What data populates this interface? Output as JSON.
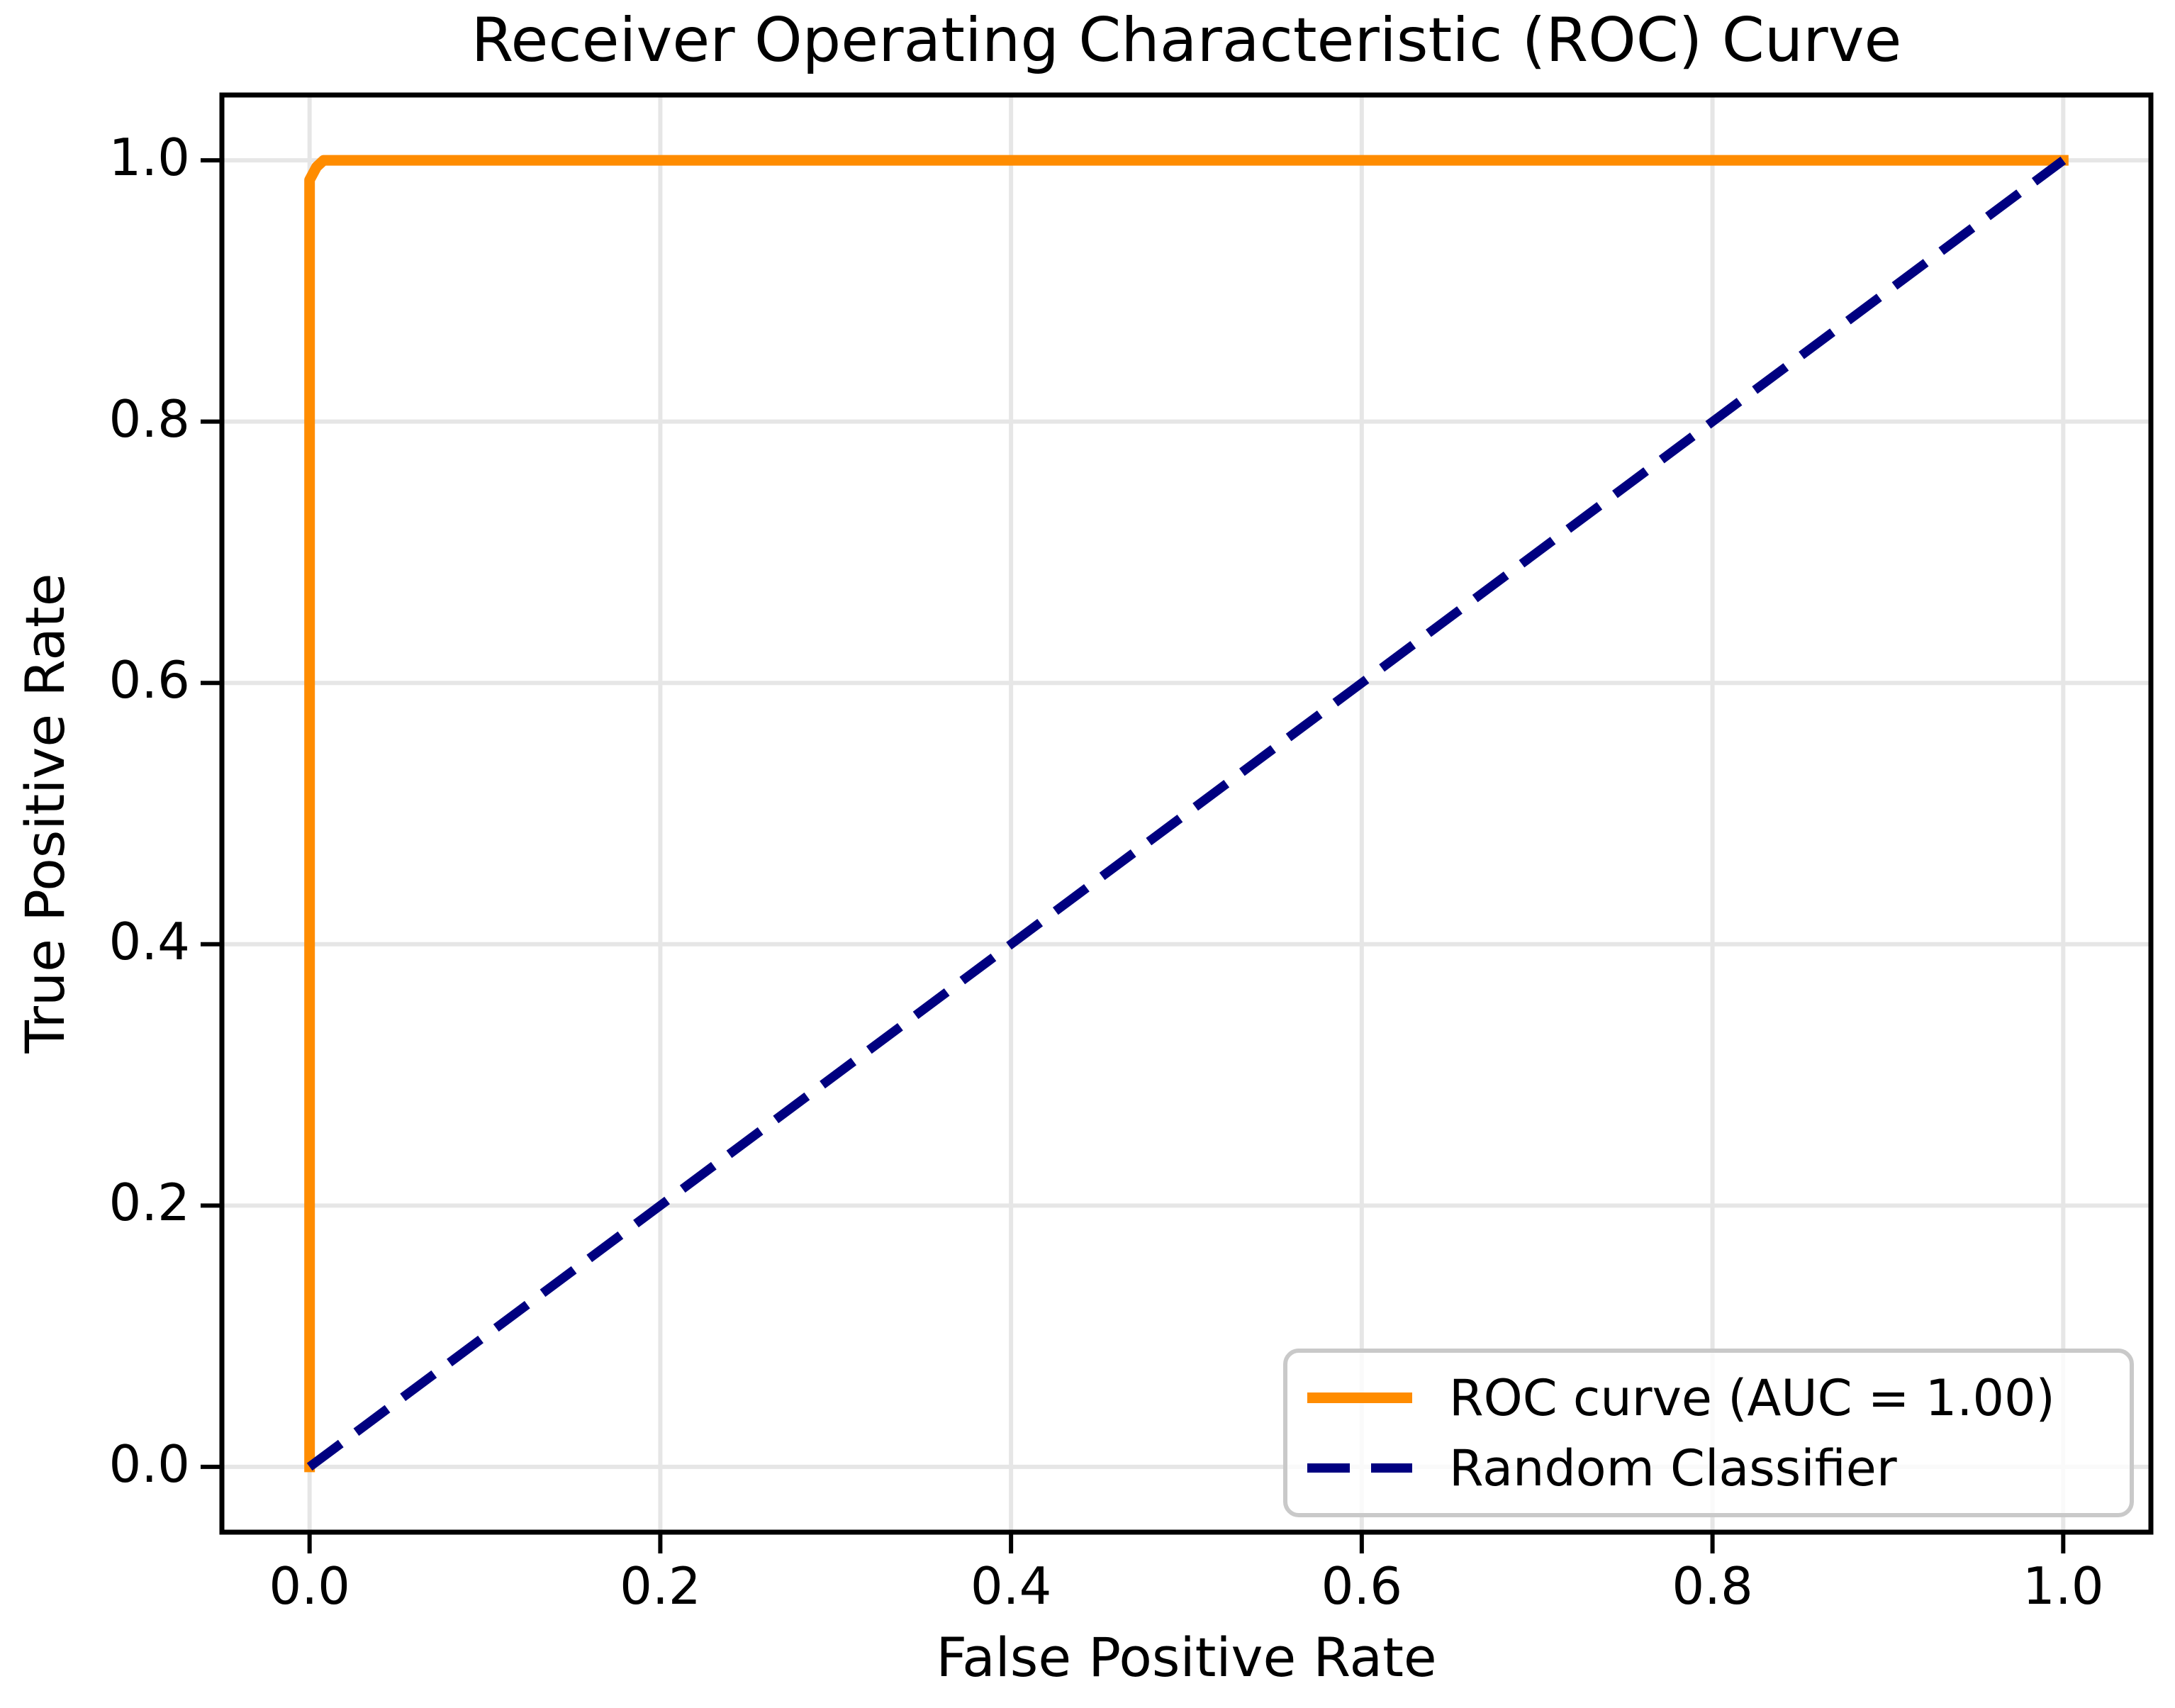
{
  "chart_data": {
    "type": "line",
    "title": "Receiver Operating Characteristic (ROC) Curve",
    "xlabel": "False Positive Rate",
    "ylabel": "True Positive Rate",
    "xlim": [
      -0.05,
      1.05
    ],
    "ylim": [
      -0.05,
      1.05
    ],
    "xticks": {
      "values": [
        0.0,
        0.2,
        0.4,
        0.6,
        0.8,
        1.0
      ],
      "labels": [
        "0.0",
        "0.2",
        "0.4",
        "0.6",
        "0.8",
        "1.0"
      ]
    },
    "yticks": {
      "values": [
        0.0,
        0.2,
        0.4,
        0.6,
        0.8,
        1.0
      ],
      "labels": [
        "0.0",
        "0.2",
        "0.4",
        "0.6",
        "0.8",
        "1.0"
      ]
    },
    "grid": true,
    "grid_color": "#e6e6e6",
    "axis_color": "#000000",
    "background_color": "#ffffff",
    "auc": "1.00",
    "legend": {
      "position": "lower right",
      "border_color": "#c9c9c9"
    },
    "series": [
      {
        "name": "ROC curve (AUC = 1.00)",
        "color": "#ff8c00",
        "style": "solid",
        "linewidth": 15,
        "points": [
          [
            0.0,
            0.0
          ],
          [
            0.0,
            0.985
          ],
          [
            0.002,
            0.99
          ],
          [
            0.004,
            0.995
          ],
          [
            0.008,
            1.0
          ],
          [
            1.0,
            1.0
          ]
        ]
      },
      {
        "name": "Random Classifier",
        "color": "#000080",
        "style": "dashed",
        "linewidth": 13,
        "dash_pattern": [
          55,
          27
        ],
        "points": [
          [
            0.0,
            0.0
          ],
          [
            1.0,
            1.0
          ]
        ]
      }
    ]
  }
}
